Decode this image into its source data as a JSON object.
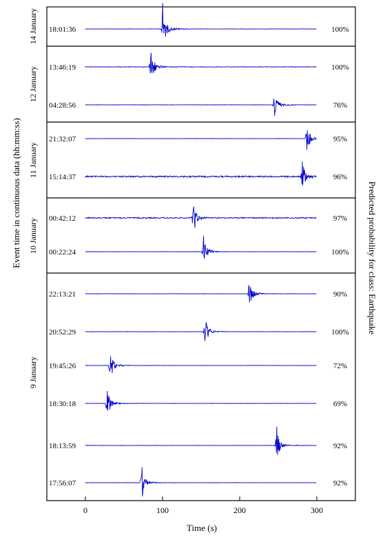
{
  "chart_data": {
    "type": "line",
    "title": "",
    "xlabel": "Time (s)",
    "ylabel_left": "Event time in continuous data (hh:mm:ss)",
    "ylabel_right": "Predicted probability for class: Earthquake",
    "xlim": [
      -50,
      350
    ],
    "xticks": [
      0,
      100,
      200,
      300
    ],
    "trace_range": [
      0,
      300
    ],
    "trace_color": "#0000cc",
    "panels": [
      {
        "date": "14 January",
        "events": [
          {
            "time": "18:01:36",
            "probability": "100%",
            "arrival_s": 100,
            "amplitude": 1.0,
            "noise": 0.01
          }
        ]
      },
      {
        "date": "12 January",
        "events": [
          {
            "time": "13:46:19",
            "probability": "100%",
            "arrival_s": 85,
            "amplitude": 0.75,
            "noise": 0.02
          },
          {
            "time": "04:28:56",
            "probability": "76%",
            "arrival_s": 245,
            "amplitude": 0.45,
            "noise": 0.01
          }
        ]
      },
      {
        "date": "11 January",
        "events": [
          {
            "time": "21:32:07",
            "probability": "95%",
            "arrival_s": 287,
            "amplitude": 0.45,
            "noise": 0.01
          },
          {
            "time": "15:14:37",
            "probability": "96%",
            "arrival_s": 281,
            "amplitude": 0.45,
            "noise": 0.05
          }
        ]
      },
      {
        "date": "10 January",
        "events": [
          {
            "time": "00:42:12",
            "probability": "97%",
            "arrival_s": 140,
            "amplitude": 0.45,
            "noise": 0.04
          },
          {
            "time": "00:22:24",
            "probability": "100%",
            "arrival_s": 153,
            "amplitude": 0.45,
            "noise": 0.01
          }
        ]
      },
      {
        "date": "9 January",
        "events": [
          {
            "time": "22:13:21",
            "probability": "90%",
            "arrival_s": 212,
            "amplitude": 0.45,
            "noise": 0.01
          },
          {
            "time": "20:52:29",
            "probability": "100%",
            "arrival_s": 155,
            "amplitude": 0.45,
            "noise": 0.01
          },
          {
            "time": "19:45:26",
            "probability": "72%",
            "arrival_s": 32,
            "amplitude": 0.45,
            "noise": 0.01
          },
          {
            "time": "18:30:18",
            "probability": "69%",
            "arrival_s": 28,
            "amplitude": 0.45,
            "noise": 0.01
          },
          {
            "time": "18:13:59",
            "probability": "92%",
            "arrival_s": 248,
            "amplitude": 0.45,
            "noise": 0.01
          },
          {
            "time": "17:56:07",
            "probability": "92%",
            "arrival_s": 73,
            "amplitude": 0.45,
            "noise": 0.01
          }
        ]
      }
    ]
  }
}
